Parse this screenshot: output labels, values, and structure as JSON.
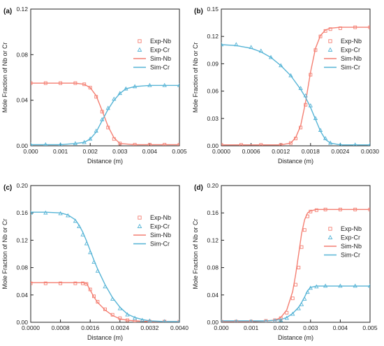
{
  "colors": {
    "nb": "#f47f72",
    "cr": "#56b4d6",
    "axis": "#222222"
  },
  "chart_data": [
    {
      "type": "line",
      "panel_label": "(a)",
      "xlabel": "Distance (m)",
      "ylabel": "Mole Fraction of Nb or Cr",
      "xlim": [
        0,
        0.005
      ],
      "ylim": [
        0,
        0.12
      ],
      "xticks": [
        "0.000",
        "0.001",
        "0.002",
        "0.003",
        "0.004",
        "0.005"
      ],
      "yticks": [
        "0.00",
        "0.04",
        "0.08",
        "0.12"
      ],
      "legend": [
        "Exp-Nb",
        "Exp-Cr",
        "Sim-Nb",
        "Sim-Cr"
      ],
      "legend_position": "right",
      "series": [
        {
          "name": "Exp-Nb",
          "marker": "square",
          "color": "#f47f72",
          "x": [
            0.0,
            0.0005,
            0.001,
            0.0015,
            0.0018,
            0.002,
            0.0022,
            0.0024,
            0.0026,
            0.0028,
            0.003,
            0.0035,
            0.004,
            0.0045,
            0.005
          ],
          "y": [
            0.055,
            0.055,
            0.055,
            0.055,
            0.054,
            0.051,
            0.043,
            0.03,
            0.016,
            0.006,
            0.002,
            0.001,
            0.001,
            0.001,
            0.001
          ]
        },
        {
          "name": "Exp-Cr",
          "marker": "triangle",
          "color": "#56b4d6",
          "x": [
            0.0,
            0.0005,
            0.001,
            0.0015,
            0.0018,
            0.002,
            0.0022,
            0.0024,
            0.0026,
            0.0028,
            0.003,
            0.0032,
            0.0035,
            0.004,
            0.0045,
            0.005
          ],
          "y": [
            0.001,
            0.001,
            0.001,
            0.002,
            0.003,
            0.006,
            0.013,
            0.023,
            0.033,
            0.041,
            0.046,
            0.05,
            0.052,
            0.053,
            0.053,
            0.053
          ]
        },
        {
          "name": "Sim-Nb",
          "line": "solid",
          "color": "#f47f72",
          "x": [
            0.0,
            0.0005,
            0.001,
            0.0015,
            0.0018,
            0.002,
            0.0022,
            0.0024,
            0.0026,
            0.0028,
            0.003,
            0.0035,
            0.004,
            0.0045,
            0.005
          ],
          "y": [
            0.055,
            0.055,
            0.055,
            0.055,
            0.054,
            0.051,
            0.044,
            0.031,
            0.017,
            0.007,
            0.002,
            0.001,
            0.001,
            0.001,
            0.001
          ]
        },
        {
          "name": "Sim-Cr",
          "line": "solid",
          "color": "#56b4d6",
          "x": [
            0.0,
            0.0005,
            0.001,
            0.0015,
            0.0018,
            0.002,
            0.0022,
            0.0024,
            0.0026,
            0.0028,
            0.003,
            0.0032,
            0.0035,
            0.004,
            0.0045,
            0.005
          ],
          "y": [
            0.001,
            0.001,
            0.001,
            0.002,
            0.003,
            0.006,
            0.012,
            0.022,
            0.032,
            0.04,
            0.046,
            0.05,
            0.052,
            0.053,
            0.053,
            0.053
          ]
        }
      ]
    },
    {
      "type": "line",
      "panel_label": "(b)",
      "xlabel": "Distance (m)",
      "ylabel": "Mole Fraction of Nb or Cr",
      "xlim": [
        0,
        0.003
      ],
      "ylim": [
        0,
        0.15
      ],
      "xticks": [
        "0.0000",
        "0.0006",
        "0.0012",
        "0.0018",
        "0.0024",
        "0.0030"
      ],
      "yticks": [
        "0.00",
        "0.03",
        "0.06",
        "0.09",
        "0.12",
        "0.15"
      ],
      "legend": [
        "Exp-Nb",
        "Exp-Cr",
        "Sim-Nb",
        "Sim-Cr"
      ],
      "legend_position": "right",
      "series": [
        {
          "name": "Exp-Nb",
          "marker": "square",
          "color": "#f47f72",
          "x": [
            0.0,
            0.0004,
            0.0008,
            0.0012,
            0.0014,
            0.0015,
            0.0016,
            0.0017,
            0.0018,
            0.0019,
            0.002,
            0.0021,
            0.0022,
            0.0024,
            0.0027,
            0.003
          ],
          "y": [
            0.001,
            0.001,
            0.001,
            0.001,
            0.003,
            0.008,
            0.02,
            0.045,
            0.078,
            0.105,
            0.12,
            0.126,
            0.128,
            0.129,
            0.13,
            0.13
          ]
        },
        {
          "name": "Exp-Cr",
          "marker": "triangle",
          "color": "#56b4d6",
          "x": [
            0.0,
            0.0003,
            0.0006,
            0.0008,
            0.001,
            0.0012,
            0.0014,
            0.0016,
            0.0017,
            0.0018,
            0.0019,
            0.002,
            0.0021,
            0.0022,
            0.0024,
            0.0027,
            0.003
          ],
          "y": [
            0.111,
            0.111,
            0.108,
            0.104,
            0.097,
            0.088,
            0.077,
            0.063,
            0.055,
            0.044,
            0.03,
            0.017,
            0.008,
            0.003,
            0.001,
            0.001,
            0.001
          ]
        },
        {
          "name": "Sim-Nb",
          "line": "solid",
          "color": "#f47f72",
          "x": [
            0.0,
            0.0004,
            0.0008,
            0.0012,
            0.0014,
            0.0015,
            0.0016,
            0.0017,
            0.0018,
            0.0019,
            0.002,
            0.0021,
            0.0022,
            0.0024,
            0.0027,
            0.003
          ],
          "y": [
            0.001,
            0.001,
            0.001,
            0.001,
            0.003,
            0.009,
            0.022,
            0.048,
            0.081,
            0.107,
            0.121,
            0.127,
            0.129,
            0.13,
            0.13,
            0.13
          ]
        },
        {
          "name": "Sim-Cr",
          "line": "solid",
          "color": "#56b4d6",
          "x": [
            0.0,
            0.0003,
            0.0006,
            0.0008,
            0.001,
            0.0012,
            0.0014,
            0.0016,
            0.0017,
            0.0018,
            0.0019,
            0.002,
            0.0021,
            0.0022,
            0.0024,
            0.0027,
            0.003
          ],
          "y": [
            0.111,
            0.11,
            0.107,
            0.103,
            0.097,
            0.088,
            0.077,
            0.062,
            0.053,
            0.042,
            0.029,
            0.016,
            0.007,
            0.003,
            0.001,
            0.001,
            0.001
          ]
        }
      ]
    },
    {
      "type": "line",
      "panel_label": "(c)",
      "xlabel": "Distance (m)",
      "ylabel": "Mole Fraction of Nb or Cr",
      "xlim": [
        0,
        0.004
      ],
      "ylim": [
        0,
        0.2
      ],
      "xticks": [
        "0.0000",
        "0.0008",
        "0.0016",
        "0.0024",
        "0.0032",
        "0.0040"
      ],
      "yticks": [
        "0.00",
        "0.04",
        "0.08",
        "0.12",
        "0.16",
        "0.20"
      ],
      "legend": [
        "Exp-Nb",
        "Exp-Cr",
        "Sim-Nb",
        "Sim-Cr"
      ],
      "legend_position": "right",
      "series": [
        {
          "name": "Exp-Nb",
          "marker": "square",
          "color": "#f47f72",
          "x": [
            0.0,
            0.0004,
            0.0008,
            0.0012,
            0.0014,
            0.0015,
            0.0016,
            0.0017,
            0.0018,
            0.002,
            0.0022,
            0.0024,
            0.0026,
            0.0028,
            0.0032,
            0.0036,
            0.004
          ],
          "y": [
            0.057,
            0.057,
            0.057,
            0.057,
            0.057,
            0.056,
            0.048,
            0.038,
            0.03,
            0.019,
            0.011,
            0.006,
            0.003,
            0.002,
            0.001,
            0.001,
            0.001
          ]
        },
        {
          "name": "Exp-Cr",
          "marker": "triangle",
          "color": "#56b4d6",
          "x": [
            0.0,
            0.0004,
            0.0008,
            0.001,
            0.0012,
            0.0013,
            0.0014,
            0.0015,
            0.0016,
            0.0017,
            0.0018,
            0.002,
            0.0022,
            0.0024,
            0.0026,
            0.0028,
            0.003,
            0.0032,
            0.0036,
            0.004
          ],
          "y": [
            0.16,
            0.16,
            0.159,
            0.156,
            0.148,
            0.14,
            0.128,
            0.115,
            0.102,
            0.088,
            0.075,
            0.052,
            0.034,
            0.02,
            0.011,
            0.006,
            0.003,
            0.002,
            0.001,
            0.001
          ]
        },
        {
          "name": "Sim-Nb",
          "line": "solid",
          "color": "#f47f72",
          "x": [
            0.0,
            0.0004,
            0.0008,
            0.0012,
            0.0014,
            0.0015,
            0.0016,
            0.0017,
            0.0018,
            0.002,
            0.0022,
            0.0024,
            0.0026,
            0.0028,
            0.0032,
            0.0036,
            0.004
          ],
          "y": [
            0.058,
            0.058,
            0.058,
            0.058,
            0.058,
            0.057,
            0.047,
            0.037,
            0.029,
            0.018,
            0.01,
            0.005,
            0.003,
            0.002,
            0.001,
            0.001,
            0.001
          ]
        },
        {
          "name": "Sim-Cr",
          "line": "solid",
          "color": "#56b4d6",
          "x": [
            0.0,
            0.0004,
            0.0008,
            0.001,
            0.0012,
            0.0013,
            0.0014,
            0.0015,
            0.0016,
            0.0017,
            0.0018,
            0.002,
            0.0022,
            0.0024,
            0.0026,
            0.0028,
            0.003,
            0.0032,
            0.0036,
            0.004
          ],
          "y": [
            0.161,
            0.161,
            0.16,
            0.157,
            0.15,
            0.142,
            0.132,
            0.119,
            0.105,
            0.091,
            0.078,
            0.055,
            0.036,
            0.022,
            0.012,
            0.007,
            0.004,
            0.002,
            0.001,
            0.001
          ]
        }
      ]
    },
    {
      "type": "line",
      "panel_label": "(d)",
      "xlabel": "Distance (m)",
      "ylabel": "Mole Fraction of Nb or Cr",
      "xlim": [
        0,
        0.005
      ],
      "ylim": [
        0,
        0.2
      ],
      "xticks": [
        "0.000",
        "0.001",
        "0.002",
        "0.003",
        "0.004",
        "0.005"
      ],
      "yticks": [
        "0.00",
        "0.04",
        "0.08",
        "0.12",
        "0.16",
        "0.20"
      ],
      "legend": [
        "Exp-Nb",
        "Exp-Cr",
        "Sim-Nb",
        "Sim-Cr"
      ],
      "legend_position": "right",
      "series": [
        {
          "name": "Exp-Nb",
          "marker": "square",
          "color": "#f47f72",
          "x": [
            0.0,
            0.0005,
            0.001,
            0.0015,
            0.0018,
            0.002,
            0.0022,
            0.0024,
            0.0025,
            0.0026,
            0.0027,
            0.0028,
            0.0029,
            0.003,
            0.0032,
            0.0035,
            0.004,
            0.0045,
            0.005
          ],
          "y": [
            0.001,
            0.001,
            0.001,
            0.002,
            0.003,
            0.006,
            0.014,
            0.035,
            0.055,
            0.08,
            0.11,
            0.135,
            0.155,
            0.162,
            0.164,
            0.165,
            0.165,
            0.165,
            0.165
          ]
        },
        {
          "name": "Exp-Cr",
          "marker": "triangle",
          "color": "#56b4d6",
          "x": [
            0.0,
            0.0005,
            0.001,
            0.0015,
            0.0018,
            0.002,
            0.0022,
            0.0024,
            0.0026,
            0.0027,
            0.0028,
            0.0029,
            0.003,
            0.0032,
            0.0035,
            0.004,
            0.0045,
            0.005
          ],
          "y": [
            0.001,
            0.001,
            0.001,
            0.001,
            0.002,
            0.003,
            0.006,
            0.012,
            0.02,
            0.026,
            0.034,
            0.044,
            0.05,
            0.052,
            0.053,
            0.053,
            0.053,
            0.053
          ]
        },
        {
          "name": "Sim-Nb",
          "line": "solid",
          "color": "#f47f72",
          "x": [
            0.0,
            0.0005,
            0.001,
            0.0015,
            0.0018,
            0.002,
            0.0022,
            0.0024,
            0.0025,
            0.0026,
            0.0027,
            0.0028,
            0.0029,
            0.003,
            0.0032,
            0.0035,
            0.004,
            0.0045,
            0.005
          ],
          "y": [
            0.001,
            0.001,
            0.001,
            0.002,
            0.003,
            0.007,
            0.018,
            0.045,
            0.07,
            0.1,
            0.13,
            0.15,
            0.16,
            0.163,
            0.165,
            0.165,
            0.165,
            0.165,
            0.165
          ]
        },
        {
          "name": "Sim-Cr",
          "line": "solid",
          "color": "#56b4d6",
          "x": [
            0.0,
            0.0005,
            0.001,
            0.0015,
            0.0018,
            0.002,
            0.0022,
            0.0024,
            0.0026,
            0.0027,
            0.0028,
            0.0029,
            0.003,
            0.0032,
            0.0035,
            0.004,
            0.0045,
            0.005
          ],
          "y": [
            0.002,
            0.002,
            0.002,
            0.002,
            0.003,
            0.004,
            0.007,
            0.013,
            0.022,
            0.029,
            0.037,
            0.046,
            0.051,
            0.053,
            0.053,
            0.053,
            0.053,
            0.053
          ]
        }
      ]
    }
  ]
}
